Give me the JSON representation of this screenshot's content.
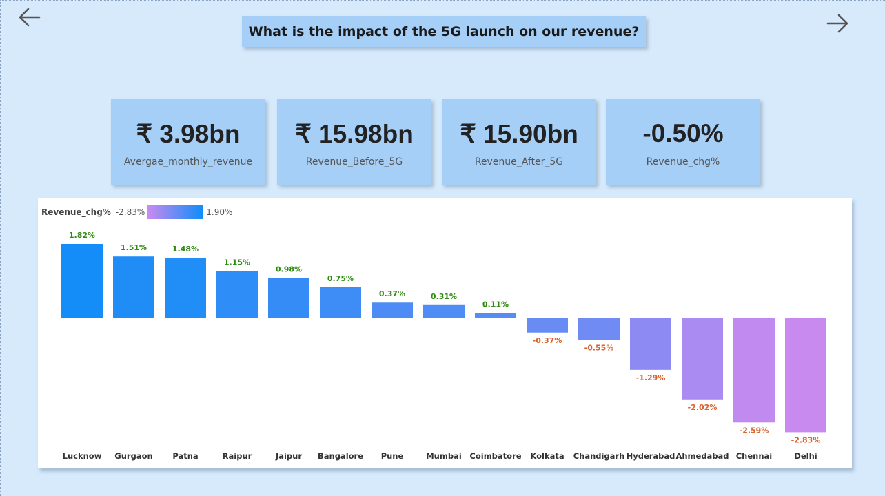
{
  "page": {
    "title": "What is the impact of the 5G launch on our revenue?"
  },
  "icons": {
    "back": "arrow-left-icon",
    "next": "arrow-right-icon"
  },
  "kpis": [
    {
      "value": "₹ 3.98bn",
      "label": "Avergae_monthly_revenue"
    },
    {
      "value": "₹ 15.98bn",
      "label": "Revenue_Before_5G"
    },
    {
      "value": "₹ 15.90bn",
      "label": "Revenue_After_5G"
    },
    {
      "value": "-0.50%",
      "label": "Revenue_chg%"
    }
  ],
  "legend": {
    "title": "Revenue_chg%",
    "min_label": "-2.83%",
    "max_label": "1.90%",
    "min_color": "#c98af0",
    "max_color": "#118df8"
  },
  "colors": {
    "positive_label": "#2e8b10",
    "negative_label": "#d9612b",
    "background": "#d6eafc",
    "card": "#a6cff8"
  },
  "chart_data": {
    "type": "bar",
    "categories": [
      "Lucknow",
      "Gurgaon",
      "Patna",
      "Raipur",
      "Jaipur",
      "Bangalore",
      "Pune",
      "Mumbai",
      "Coimbatore",
      "Kolkata",
      "Chandigarh",
      "Hyderabad",
      "Ahmedabad",
      "Chennai",
      "Delhi"
    ],
    "values": [
      1.82,
      1.51,
      1.48,
      1.15,
      0.98,
      0.75,
      0.37,
      0.31,
      0.11,
      -0.37,
      -0.55,
      -1.29,
      -2.02,
      -2.59,
      -2.83
    ],
    "labels": [
      "1.82%",
      "1.51%",
      "1.48%",
      "1.15%",
      "0.98%",
      "0.75%",
      "0.37%",
      "0.31%",
      "0.11%",
      "-0.37%",
      "-0.55%",
      "-1.29%",
      "-2.02%",
      "-2.59%",
      "-2.83%"
    ],
    "color_scale": {
      "min": -2.83,
      "max": 1.9
    },
    "ylim": [
      -2.83,
      1.82
    ]
  }
}
